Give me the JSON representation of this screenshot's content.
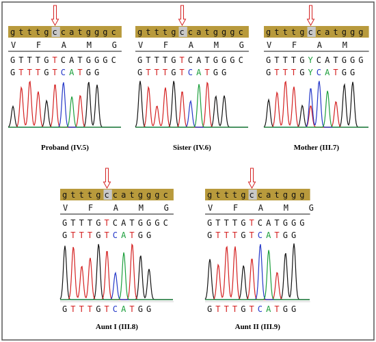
{
  "panels": [
    {
      "reference": "gtttgccatgggc",
      "amino_acids": "VFAMG",
      "sequence_1": "GTTTGTCATGGGC",
      "sequence_2": "GTTTGTCATGG",
      "caption": "Proband (IV.5)"
    },
    {
      "reference": "gtttgccatgggc",
      "amino_acids": "VFAMG",
      "sequence_1": "GTTTGTCATGGGC",
      "sequence_2": "GTTTGTCATGG",
      "caption": "Sister (IV.6)"
    },
    {
      "reference": "gtttgccatggg",
      "amino_acids": "VFAM",
      "sequence_1": "GTTTGYCATGGG",
      "sequence_2": "GTTTGYCATGG",
      "caption": "Mother (III.7)"
    },
    {
      "reference": "gtttgccatgggc",
      "amino_acids": "VFAMG",
      "sequence_1": "GTTTGTCATGGGC",
      "sequence_2": "GTTTGTCATGG",
      "bottom_sequence": "GTTTGTCATGG",
      "caption": "Aunt I (III.8)"
    },
    {
      "reference": "gtttgccatggg",
      "amino_acids": "VFAMG",
      "sequence_1": "GTTTGTCATGGG",
      "sequence_2": "GTTTGTCATGG",
      "bottom_sequence": "GTTTGTCATGG",
      "caption": "Aunt II (III.9)"
    }
  ]
}
